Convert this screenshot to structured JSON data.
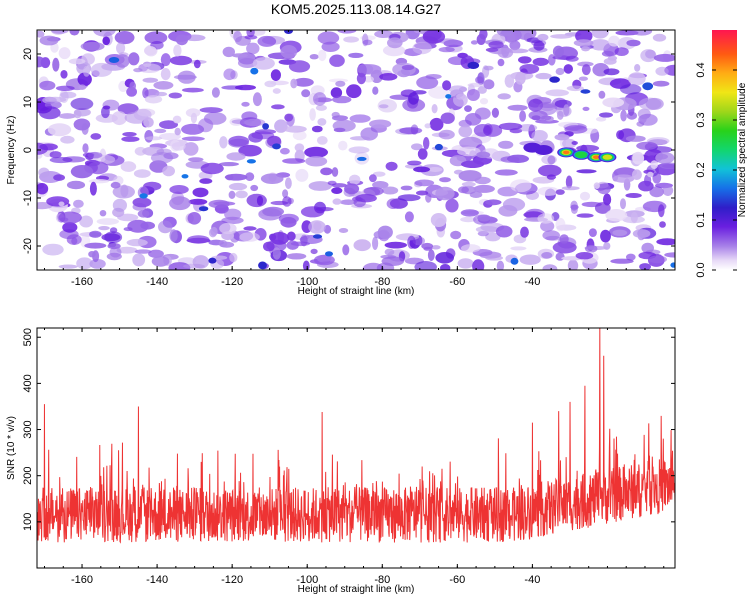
{
  "chart_data": [
    {
      "type": "heatmap",
      "title": "KOM5.2025.113.08.14.G27",
      "xlabel": "Height of straight line (km)",
      "ylabel": "Frequency (Hz)",
      "xlim": [
        -172,
        -2
      ],
      "ylim": [
        -25,
        25
      ],
      "xticks": [
        -160,
        -140,
        -120,
        -100,
        -80,
        -60,
        -40
      ],
      "yticks": [
        -20,
        -10,
        0,
        10,
        20
      ],
      "colorbar": {
        "label": "Normalized spectral amplitude",
        "range": [
          0,
          0.48
        ],
        "ticks": [
          "0.0",
          "0.1",
          "0.2",
          "0.3",
          "0.4"
        ]
      },
      "grid": false,
      "noise_level": 0.07,
      "features": [
        {
          "x": -40,
          "y": 0.5,
          "amplitude": 0.12
        },
        {
          "x": -37,
          "y": 0,
          "amplitude": 0.11
        },
        {
          "x": -31,
          "y": -0.5,
          "amplitude": 0.46
        },
        {
          "x": -27,
          "y": -1,
          "amplitude": 0.3
        },
        {
          "x": -23,
          "y": -1.5,
          "amplitude": 0.46
        },
        {
          "x": -20,
          "y": -1.5,
          "amplitude": 0.4
        }
      ]
    },
    {
      "type": "line",
      "xlabel": "Height of straight line (km)",
      "ylabel": "SNR (10 * v/v)",
      "xlim": [
        -172,
        -2
      ],
      "ylim": [
        0,
        520
      ],
      "xticks": [
        -160,
        -140,
        -120,
        -100,
        -80,
        -60,
        -40
      ],
      "yticks": [
        100,
        200,
        300,
        400,
        500
      ],
      "grid": false,
      "series": [
        {
          "color": "#ee3333",
          "baseline": 115,
          "spread": 60,
          "peaks": [
            {
              "x": -170,
              "y": 355
            },
            {
              "x": -145,
              "y": 350
            },
            {
              "x": -96,
              "y": 338
            },
            {
              "x": -40,
              "y": 315
            },
            {
              "x": -33,
              "y": 340
            },
            {
              "x": -30,
              "y": 360
            },
            {
              "x": -26,
              "y": 395
            },
            {
              "x": -22,
              "y": 525
            },
            {
              "x": -21,
              "y": 460
            }
          ]
        }
      ]
    }
  ]
}
